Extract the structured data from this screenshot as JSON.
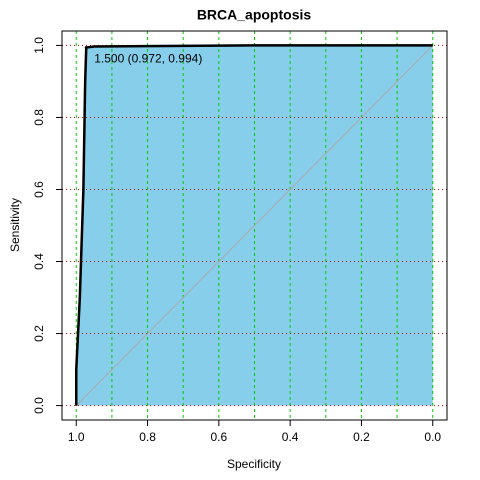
{
  "chart_data": {
    "type": "roc",
    "title": "BRCA_apoptosis",
    "xlabel": "Specificity",
    "ylabel": "Sensitivity",
    "x": [
      1.0,
      1.0,
      0.99,
      0.98,
      0.975,
      0.972,
      0.95,
      0.5,
      0.0
    ],
    "series": [
      {
        "name": "ROC",
        "color": "#000000",
        "fill": "#87ceeb",
        "values": [
          0.0,
          0.1,
          0.3,
          0.6,
          0.9,
          0.994,
          0.997,
          1.0,
          1.0
        ]
      }
    ],
    "annotation": {
      "text": "1.500 (0.972, 0.994)",
      "x": 0.972,
      "y": 0.994
    },
    "xlim": [
      1.04,
      -0.04
    ],
    "ylim": [
      -0.04,
      1.04
    ],
    "xticks": [
      {
        "value": 1.0,
        "label": "1.0"
      },
      {
        "value": 0.8,
        "label": "0.8"
      },
      {
        "value": 0.6,
        "label": "0.6"
      },
      {
        "value": 0.4,
        "label": "0.4"
      },
      {
        "value": 0.2,
        "label": "0.2"
      },
      {
        "value": 0.0,
        "label": "0.0"
      }
    ],
    "yticks": [
      {
        "value": 0.0,
        "label": "0.0"
      },
      {
        "value": 0.2,
        "label": "0.2"
      },
      {
        "value": 0.4,
        "label": "0.4"
      },
      {
        "value": 0.6,
        "label": "0.6"
      },
      {
        "value": 0.8,
        "label": "0.8"
      },
      {
        "value": 1.0,
        "label": "1.0"
      }
    ],
    "xgrid": [
      1.0,
      0.9,
      0.8,
      0.7,
      0.6,
      0.5,
      0.4,
      0.3,
      0.2,
      0.1,
      0.0
    ],
    "xgrid_color": "#00cc00",
    "ygrid": [
      0.0,
      0.2,
      0.4,
      0.6,
      0.8,
      1.0
    ],
    "ygrid_color": "#cc0000",
    "diagonal_color": "#aaaaaa"
  }
}
